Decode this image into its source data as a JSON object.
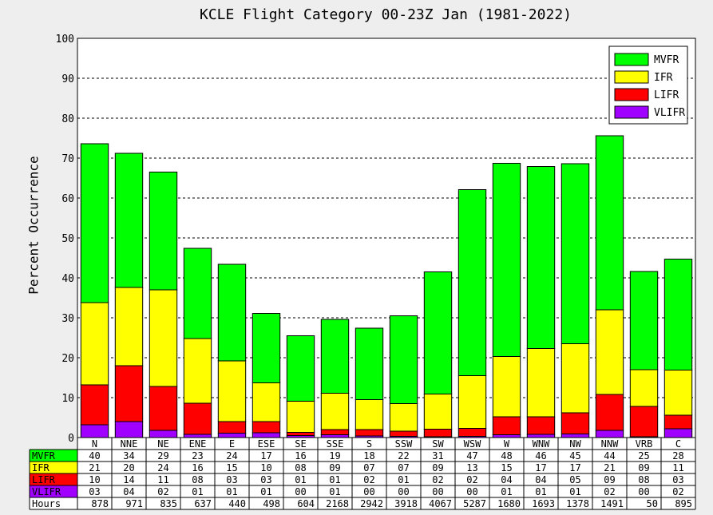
{
  "chart_data": {
    "type": "bar",
    "title": "KCLE Flight Category 00-23Z Jan (1981-2022)",
    "ylabel": "Percent Occurrence",
    "ylim": [
      0,
      100
    ],
    "yticks": [
      0,
      10,
      20,
      30,
      40,
      50,
      60,
      70,
      80,
      90,
      100
    ],
    "grid": true,
    "legend_position": "top-right",
    "stacked": true,
    "categories": [
      "N",
      "NNE",
      "NE",
      "ENE",
      "E",
      "ESE",
      "SE",
      "SSE",
      "S",
      "SSW",
      "SW",
      "WSW",
      "W",
      "WNW",
      "NW",
      "NNW",
      "VRB",
      "C"
    ],
    "series": [
      {
        "name": "VLIFR",
        "color": "#a000ff",
        "values": [
          3.2,
          4.0,
          1.8,
          0.8,
          1.1,
          1.2,
          0.5,
          0.7,
          0.4,
          0.3,
          0.2,
          0.3,
          0.7,
          0.8,
          0.9,
          1.8,
          0.2,
          2.2
        ]
      },
      {
        "name": "LIFR",
        "color": "#ff0000",
        "values": [
          10.0,
          14.0,
          11.0,
          7.8,
          2.9,
          2.8,
          0.8,
          1.3,
          1.6,
          1.3,
          1.9,
          2.0,
          4.5,
          4.4,
          5.3,
          9.0,
          7.6,
          3.4
        ]
      },
      {
        "name": "IFR",
        "color": "#ffff00",
        "values": [
          20.6,
          19.6,
          24.2,
          16.2,
          15.2,
          9.7,
          7.8,
          9.1,
          7.5,
          6.9,
          8.8,
          13.2,
          15.1,
          17.1,
          17.3,
          21.2,
          9.2,
          11.3
        ]
      },
      {
        "name": "MVFR",
        "color": "#00ff00",
        "values": [
          39.8,
          33.6,
          29.5,
          22.6,
          24.2,
          17.4,
          16.4,
          18.5,
          17.9,
          22.0,
          30.6,
          46.6,
          48.4,
          45.6,
          45.1,
          43.6,
          24.6,
          27.8
        ]
      }
    ],
    "legend_order": [
      "MVFR",
      "IFR",
      "LIFR",
      "VLIFR"
    ],
    "table": {
      "header": "Hours",
      "rows": [
        {
          "label": "MVFR",
          "color": "#00ff00",
          "values": [
            "40",
            "34",
            "29",
            "23",
            "24",
            "17",
            "16",
            "19",
            "18",
            "22",
            "31",
            "47",
            "48",
            "46",
            "45",
            "44",
            "25",
            "28"
          ]
        },
        {
          "label": "IFR",
          "color": "#ffff00",
          "values": [
            "21",
            "20",
            "24",
            "16",
            "15",
            "10",
            "08",
            "09",
            "07",
            "07",
            "09",
            "13",
            "15",
            "17",
            "17",
            "21",
            "09",
            "11"
          ]
        },
        {
          "label": "LIFR",
          "color": "#ff0000",
          "values": [
            "10",
            "14",
            "11",
            "08",
            "03",
            "03",
            "01",
            "01",
            "02",
            "01",
            "02",
            "02",
            "04",
            "04",
            "05",
            "09",
            "08",
            "03"
          ]
        },
        {
          "label": "VLIFR",
          "color": "#a000ff",
          "values": [
            "03",
            "04",
            "02",
            "01",
            "01",
            "01",
            "00",
            "01",
            "00",
            "00",
            "00",
            "00",
            "01",
            "01",
            "01",
            "02",
            "00",
            "02"
          ]
        }
      ],
      "hours": [
        "878",
        "971",
        "835",
        "637",
        "440",
        "498",
        "604",
        "2168",
        "2942",
        "3918",
        "4067",
        "5287",
        "1680",
        "1693",
        "1378",
        "1491",
        "50",
        "895"
      ]
    }
  }
}
